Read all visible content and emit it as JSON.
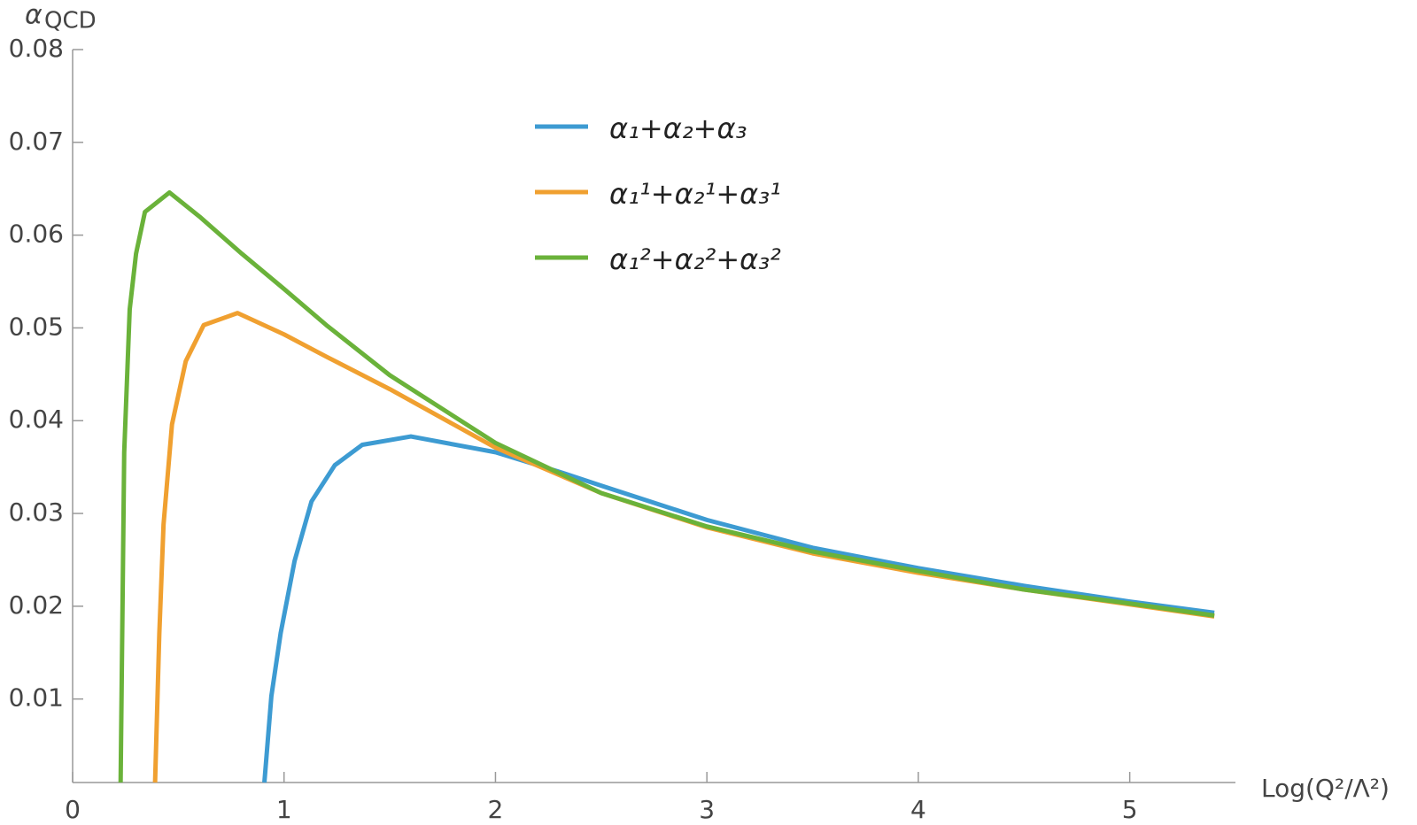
{
  "chart_data": {
    "type": "line",
    "ylabel": {
      "symbol": "α",
      "subscript": "QCD"
    },
    "xlabel": "Log(Q²/Λ²)",
    "xlim": [
      0,
      5.5
    ],
    "ylim": [
      0.001,
      0.08
    ],
    "xticks": [
      0,
      1,
      2,
      3,
      4,
      5
    ],
    "yticks": [
      0.01,
      0.02,
      0.03,
      0.04,
      0.05,
      0.06,
      0.07,
      0.08
    ],
    "legend": "upper-center",
    "series": [
      {
        "name": "α₁+α₂+α₃",
        "color": "#3d9bd2",
        "x": [
          0.907,
          0.94,
          0.984,
          1.05,
          1.13,
          1.24,
          1.37,
          1.6,
          2,
          2.3,
          2.5,
          3,
          3.5,
          4,
          4.5,
          5,
          5.4
        ],
        "values": [
          0.001,
          0.0103,
          0.0171,
          0.0249,
          0.0313,
          0.0352,
          0.0374,
          0.0383,
          0.0366,
          0.0345,
          0.033,
          0.0293,
          0.0263,
          0.0241,
          0.0222,
          0.0205,
          0.0193
        ]
      },
      {
        "name": "α₁¹+α₂¹+α₃¹",
        "color": "#f0a030",
        "x": [
          0.39,
          0.41,
          0.43,
          0.47,
          0.535,
          0.62,
          0.78,
          1,
          1.2,
          1.5,
          2,
          2.5,
          3,
          3.5,
          4,
          4.5,
          5,
          5.4
        ],
        "values": [
          0.001,
          0.017,
          0.0288,
          0.0396,
          0.0464,
          0.0503,
          0.0516,
          0.0493,
          0.0469,
          0.0434,
          0.0371,
          0.0322,
          0.0285,
          0.0257,
          0.0236,
          0.0218,
          0.0202,
          0.0189
        ]
      },
      {
        "name": "α₁²+α₂²+α₃²",
        "color": "#6ab23a",
        "x": [
          0.227,
          0.244,
          0.27,
          0.3,
          0.342,
          0.458,
          0.6,
          0.8,
          1,
          1.2,
          1.5,
          2,
          2.5,
          3,
          3.5,
          4,
          4.5,
          5,
          5.4
        ],
        "values": [
          0.001,
          0.0366,
          0.052,
          0.058,
          0.0625,
          0.0646,
          0.062,
          0.058,
          0.0542,
          0.0503,
          0.0449,
          0.0376,
          0.0322,
          0.0286,
          0.0259,
          0.0238,
          0.0218,
          0.0203,
          0.019
        ]
      }
    ]
  }
}
